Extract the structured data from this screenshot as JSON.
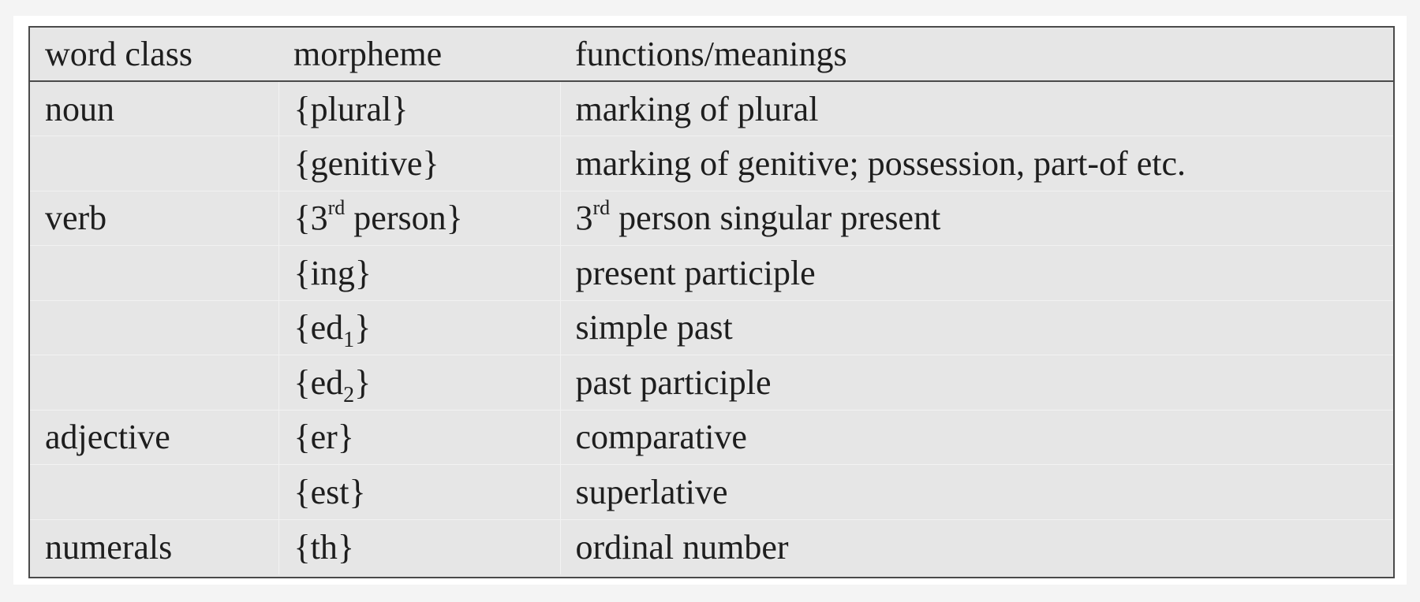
{
  "table": {
    "headers": [
      "word class",
      "morpheme",
      "functions/meanings"
    ],
    "rows": [
      {
        "word_class": "noun",
        "morpheme": {
          "pre": "{plural}",
          "sup": "",
          "sub": "",
          "post": ""
        },
        "function": {
          "pre": "marking of plural",
          "sup": "",
          "post": ""
        }
      },
      {
        "word_class": "",
        "morpheme": {
          "pre": "{genitive}",
          "sup": "",
          "sub": "",
          "post": ""
        },
        "function": {
          "pre": "marking of genitive; possession, part-of etc.",
          "sup": "",
          "post": ""
        }
      },
      {
        "word_class": "verb",
        "morpheme": {
          "pre": "{3",
          "sup": "rd",
          "sub": "",
          "post": " person}"
        },
        "function": {
          "pre": "3",
          "sup": "rd",
          "post": " person singular present"
        }
      },
      {
        "word_class": "",
        "morpheme": {
          "pre": "{ing}",
          "sup": "",
          "sub": "",
          "post": ""
        },
        "function": {
          "pre": "present participle",
          "sup": "",
          "post": ""
        }
      },
      {
        "word_class": "",
        "morpheme": {
          "pre": "{ed",
          "sup": "",
          "sub": "1",
          "post": "}"
        },
        "function": {
          "pre": "simple past",
          "sup": "",
          "post": ""
        }
      },
      {
        "word_class": "",
        "morpheme": {
          "pre": "{ed",
          "sup": "",
          "sub": "2",
          "post": "}"
        },
        "function": {
          "pre": "past participle",
          "sup": "",
          "post": ""
        }
      },
      {
        "word_class": "adjective",
        "morpheme": {
          "pre": "{er}",
          "sup": "",
          "sub": "",
          "post": ""
        },
        "function": {
          "pre": "comparative",
          "sup": "",
          "post": ""
        }
      },
      {
        "word_class": "",
        "morpheme": {
          "pre": "{est}",
          "sup": "",
          "sub": "",
          "post": ""
        },
        "function": {
          "pre": "superlative",
          "sup": "",
          "post": ""
        }
      },
      {
        "word_class": "numerals",
        "morpheme": {
          "pre": "{th}",
          "sup": "",
          "sub": "",
          "post": ""
        },
        "function": {
          "pre": "ordinal number",
          "sup": "",
          "post": ""
        }
      }
    ]
  }
}
